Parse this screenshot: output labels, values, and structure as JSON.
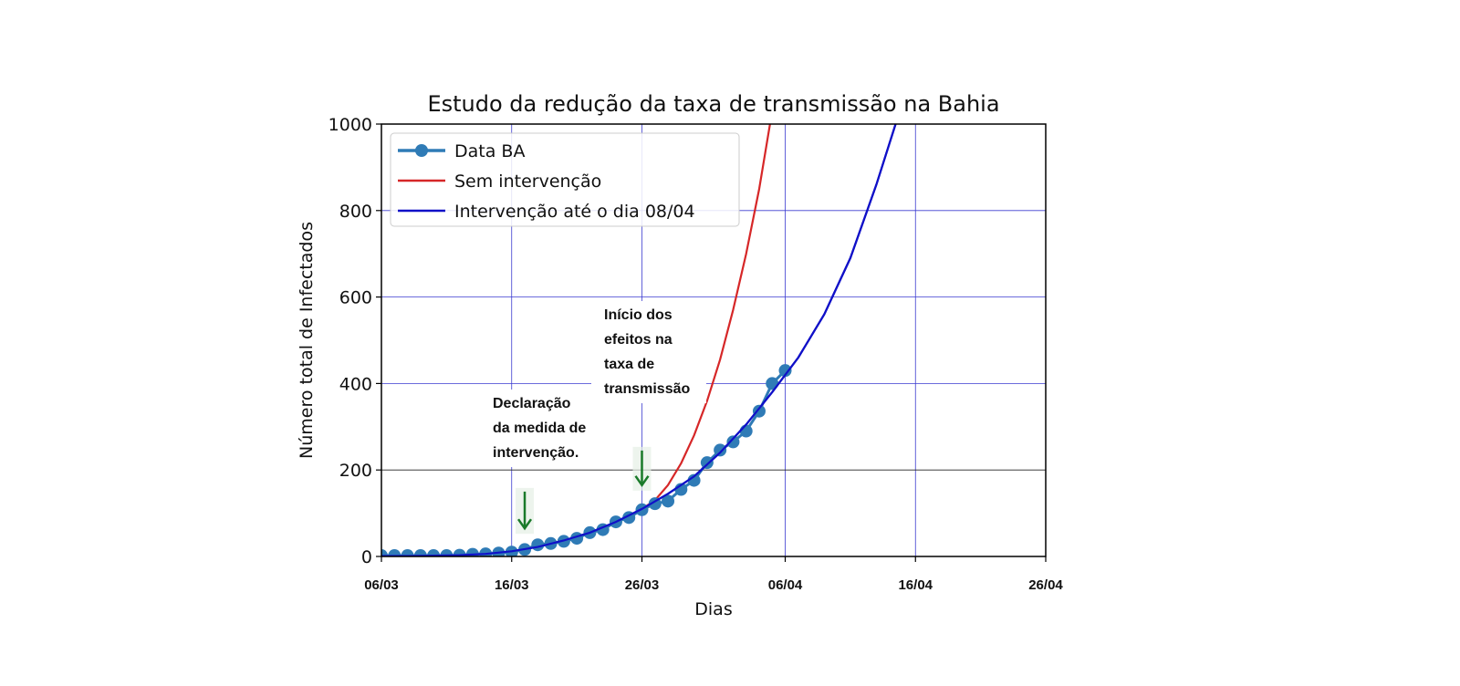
{
  "chart_data": {
    "type": "line",
    "title": "Estudo da redução da taxa de transmissão na Bahia",
    "xlabel": "Dias",
    "ylabel": "Número total de Infectados",
    "x_unit": "date",
    "xlim": [
      "2020-03-06",
      "2020-04-26"
    ],
    "ylim": [
      0,
      1000
    ],
    "xticks": [
      {
        "date": "2020-03-06",
        "label": "06/03"
      },
      {
        "date": "2020-03-16",
        "label": "16/03"
      },
      {
        "date": "2020-03-26",
        "label": "26/03"
      },
      {
        "date": "2020-04-06",
        "label": "06/04"
      },
      {
        "date": "2020-04-16",
        "label": "16/04"
      },
      {
        "date": "2020-04-26",
        "label": "26/04"
      }
    ],
    "yticks": [
      {
        "value": 0,
        "label": "0"
      },
      {
        "value": 200,
        "label": "200"
      },
      {
        "value": 400,
        "label": "400"
      },
      {
        "value": 600,
        "label": "600"
      },
      {
        "value": 800,
        "label": "800"
      },
      {
        "value": 1000,
        "label": "1000"
      }
    ],
    "grid": true,
    "legend_position": "top-left",
    "series": [
      {
        "name": "Data BA",
        "style": "line-markers",
        "color": "#2f7bb6",
        "points": [
          [
            "2020-03-06",
            2
          ],
          [
            "2020-03-07",
            2
          ],
          [
            "2020-03-08",
            2
          ],
          [
            "2020-03-09",
            2
          ],
          [
            "2020-03-10",
            2
          ],
          [
            "2020-03-11",
            2
          ],
          [
            "2020-03-12",
            3
          ],
          [
            "2020-03-13",
            5
          ],
          [
            "2020-03-14",
            6
          ],
          [
            "2020-03-15",
            8
          ],
          [
            "2020-03-16",
            10
          ],
          [
            "2020-03-17",
            16
          ],
          [
            "2020-03-18",
            27
          ],
          [
            "2020-03-19",
            30
          ],
          [
            "2020-03-20",
            35
          ],
          [
            "2020-03-21",
            42
          ],
          [
            "2020-03-22",
            55
          ],
          [
            "2020-03-23",
            62
          ],
          [
            "2020-03-24",
            80
          ],
          [
            "2020-03-25",
            90
          ],
          [
            "2020-03-26",
            108
          ],
          [
            "2020-03-27",
            122
          ],
          [
            "2020-03-28",
            128
          ],
          [
            "2020-03-29",
            155
          ],
          [
            "2020-03-30",
            176
          ],
          [
            "2020-03-31",
            217
          ],
          [
            "2020-04-01",
            246
          ],
          [
            "2020-04-02",
            265
          ],
          [
            "2020-04-03",
            290
          ],
          [
            "2020-04-04",
            336
          ],
          [
            "2020-04-05",
            400
          ],
          [
            "2020-04-06",
            430
          ]
        ]
      },
      {
        "name": "Sem intervenção",
        "style": "line",
        "color": "#d62728",
        "points": [
          [
            "2020-03-26",
            110
          ],
          [
            "2020-03-27",
            130
          ],
          [
            "2020-03-28",
            165
          ],
          [
            "2020-03-29",
            215
          ],
          [
            "2020-03-30",
            280
          ],
          [
            "2020-03-31",
            360
          ],
          [
            "2020-04-01",
            455
          ],
          [
            "2020-04-02",
            570
          ],
          [
            "2020-04-03",
            700
          ],
          [
            "2020-04-04",
            850
          ],
          [
            "2020-04-05",
            1030
          ]
        ]
      },
      {
        "name": "Intervenção até o dia 08/04",
        "style": "line",
        "color": "#1010c8",
        "points": [
          [
            "2020-03-06",
            1
          ],
          [
            "2020-03-08",
            1
          ],
          [
            "2020-03-10",
            2
          ],
          [
            "2020-03-12",
            3
          ],
          [
            "2020-03-14",
            6
          ],
          [
            "2020-03-16",
            12
          ],
          [
            "2020-03-18",
            22
          ],
          [
            "2020-03-20",
            37
          ],
          [
            "2020-03-22",
            55
          ],
          [
            "2020-03-24",
            80
          ],
          [
            "2020-03-26",
            110
          ],
          [
            "2020-03-28",
            145
          ],
          [
            "2020-03-30",
            185
          ],
          [
            "2020-04-01",
            240
          ],
          [
            "2020-04-03",
            305
          ],
          [
            "2020-04-05",
            380
          ],
          [
            "2020-04-07",
            460
          ],
          [
            "2020-04-09",
            560
          ],
          [
            "2020-04-11",
            690
          ],
          [
            "2020-04-13",
            860
          ],
          [
            "2020-04-15",
            1050
          ]
        ]
      }
    ],
    "annotations": [
      {
        "lines": [
          "Declaração",
          "da medida de",
          "intervenção."
        ],
        "arrow_date": "2020-03-17",
        "arrow_from": 150,
        "arrow_to": 65,
        "arrow_color": "#1a7a2a"
      },
      {
        "lines": [
          "Início dos",
          "efeitos na",
          "taxa de",
          "transmissão"
        ],
        "arrow_date": "2020-03-26",
        "arrow_from": 245,
        "arrow_to": 165,
        "arrow_color": "#1a7a2a"
      }
    ]
  }
}
